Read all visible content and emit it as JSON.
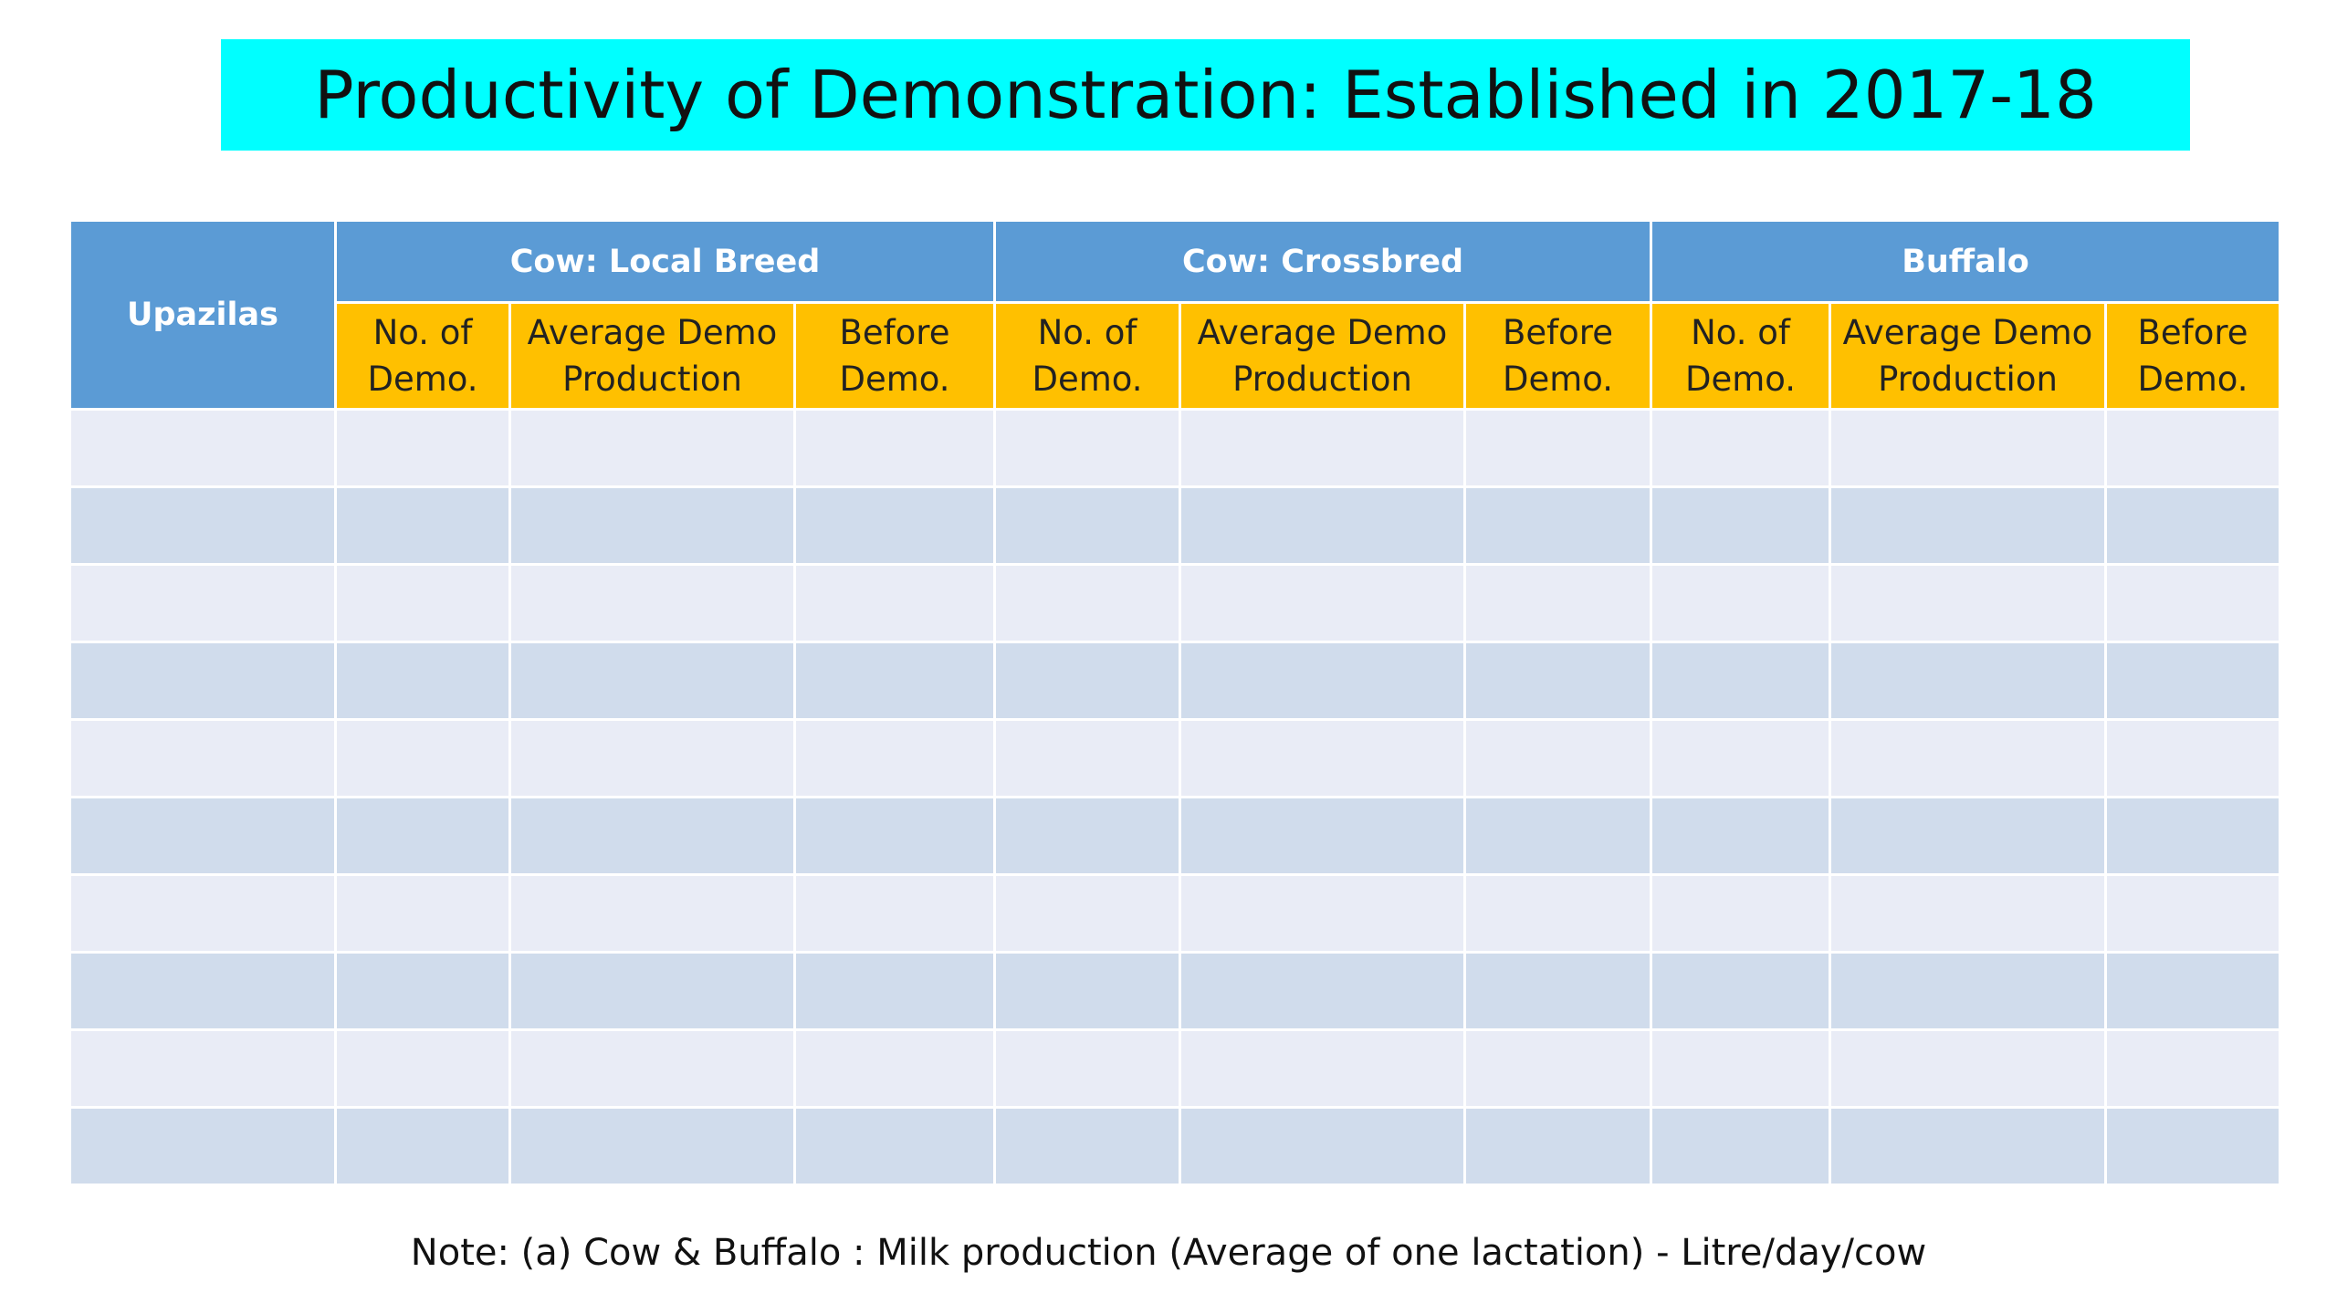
{
  "title": "Productivity of Demonstration: Established in 2017-18",
  "table": {
    "first_header": "Upazilas",
    "groups": [
      {
        "label": "Cow: Local Breed",
        "columns": [
          {
            "line1": "No. of",
            "line2": "Demo."
          },
          {
            "line1": "Average Demo",
            "line2": "Production"
          },
          {
            "line1": "Before",
            "line2": "Demo."
          }
        ]
      },
      {
        "label": "Cow: Crossbred",
        "columns": [
          {
            "line1": "No. of",
            "line2": "Demo."
          },
          {
            "line1": "Average Demo",
            "line2": "Production"
          },
          {
            "line1": "Before",
            "line2": "Demo."
          }
        ]
      },
      {
        "label": "Buffalo",
        "columns": [
          {
            "line1": "No. of",
            "line2": "Demo."
          },
          {
            "line1": "Average Demo",
            "line2": "Production"
          },
          {
            "line1": "Before",
            "line2": "Demo."
          }
        ]
      }
    ],
    "rows": [
      [
        "",
        "",
        "",
        "",
        "",
        "",
        "",
        "",
        "",
        ""
      ],
      [
        "",
        "",
        "",
        "",
        "",
        "",
        "",
        "",
        "",
        ""
      ],
      [
        "",
        "",
        "",
        "",
        "",
        "",
        "",
        "",
        "",
        ""
      ],
      [
        "",
        "",
        "",
        "",
        "",
        "",
        "",
        "",
        "",
        ""
      ],
      [
        "",
        "",
        "",
        "",
        "",
        "",
        "",
        "",
        "",
        ""
      ],
      [
        "",
        "",
        "",
        "",
        "",
        "",
        "",
        "",
        "",
        ""
      ],
      [
        "",
        "",
        "",
        "",
        "",
        "",
        "",
        "",
        "",
        ""
      ],
      [
        "",
        "",
        "",
        "",
        "",
        "",
        "",
        "",
        "",
        ""
      ],
      [
        "",
        "",
        "",
        "",
        "",
        "",
        "",
        "",
        "",
        ""
      ],
      [
        "",
        "",
        "",
        "",
        "",
        "",
        "",
        "",
        "",
        ""
      ]
    ]
  },
  "note": "Note: (a) Cow & Buffalo : Milk production (Average of one lactation) - Litre/day/cow",
  "colors": {
    "title_banner": "#00ffff",
    "group_header": "#5b9bd5",
    "sub_header": "#ffc000",
    "row_light": "#e9ecf6",
    "row_dark": "#d0dcec"
  }
}
